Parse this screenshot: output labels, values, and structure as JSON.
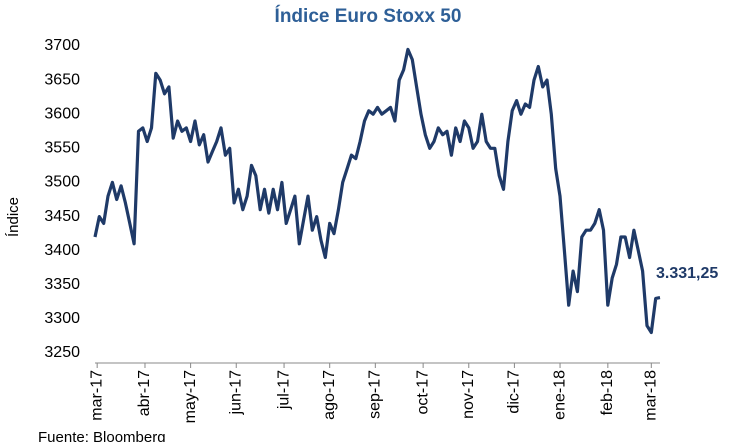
{
  "chart_data": {
    "type": "line",
    "title": "Índice Euro Stoxx 50",
    "y_label": "Índice",
    "source": "Fuente: Bloomberg",
    "annotation": "3.331,25",
    "series": [
      {
        "color": "#1f3a68",
        "values": [
          3420,
          3450,
          3440,
          3480,
          3500,
          3475,
          3495,
          3470,
          3440,
          3410,
          3575,
          3580,
          3560,
          3580,
          3660,
          3650,
          3630,
          3640,
          3565,
          3590,
          3575,
          3580,
          3560,
          3590,
          3555,
          3570,
          3530,
          3545,
          3560,
          3580,
          3540,
          3550,
          3470,
          3490,
          3460,
          3480,
          3525,
          3510,
          3460,
          3490,
          3455,
          3490,
          3460,
          3500,
          3440,
          3460,
          3480,
          3410,
          3445,
          3480,
          3430,
          3450,
          3415,
          3390,
          3440,
          3425,
          3460,
          3500,
          3520,
          3540,
          3535,
          3560,
          3590,
          3605,
          3600,
          3610,
          3600,
          3605,
          3610,
          3590,
          3650,
          3665,
          3695,
          3680,
          3640,
          3600,
          3570,
          3550,
          3560,
          3580,
          3570,
          3575,
          3540,
          3580,
          3560,
          3590,
          3580,
          3550,
          3560,
          3600,
          3560,
          3550,
          3550,
          3510,
          3490,
          3560,
          3605,
          3620,
          3600,
          3615,
          3610,
          3650,
          3670,
          3640,
          3650,
          3600,
          3520,
          3480,
          3400,
          3320,
          3370,
          3340,
          3420,
          3430,
          3430,
          3440,
          3460,
          3430,
          3320,
          3360,
          3380,
          3420,
          3420,
          3390,
          3430,
          3400,
          3370,
          3290,
          3280,
          3330,
          3331.25
        ]
      }
    ],
    "xlim": [
      0,
      130
    ],
    "xticks": [
      {
        "value": 0.5,
        "label": "mar-17"
      },
      {
        "value": 11.5,
        "label": "abr-17"
      },
      {
        "value": 22,
        "label": "may-17"
      },
      {
        "value": 32.5,
        "label": "jun-17"
      },
      {
        "value": 43.5,
        "label": "jul-17"
      },
      {
        "value": 54,
        "label": "ago-17"
      },
      {
        "value": 64.5,
        "label": "sep-17"
      },
      {
        "value": 75.5,
        "label": "oct-17"
      },
      {
        "value": 86,
        "label": "nov-17"
      },
      {
        "value": 96.5,
        "label": "dic-17"
      },
      {
        "value": 107,
        "label": "ene-18"
      },
      {
        "value": 118,
        "label": "feb-18"
      },
      {
        "value": 128,
        "label": "mar-18"
      }
    ],
    "ylim": [
      3250,
      3700
    ],
    "yticks": [
      3250,
      3300,
      3350,
      3400,
      3450,
      3500,
      3550,
      3600,
      3650,
      3700
    ],
    "grid": false
  }
}
